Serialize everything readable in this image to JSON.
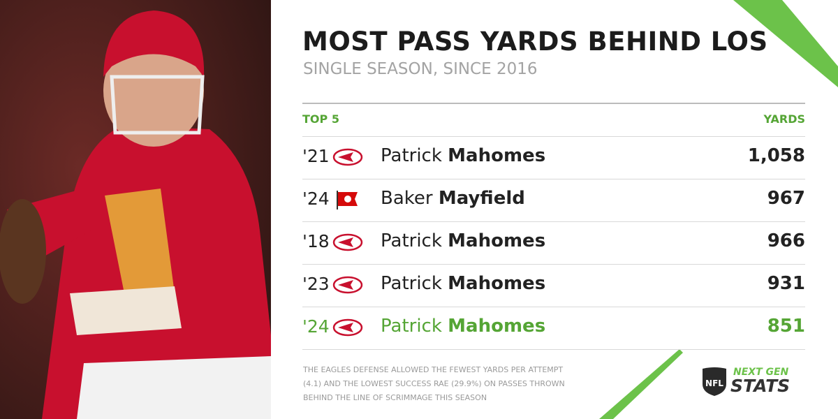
{
  "header": {
    "title": "MOST PASS YARDS BEHIND LOS",
    "subtitle": "SINGLE SEASON, SINCE 2016"
  },
  "table": {
    "columns": [
      "TOP 5",
      "YARDS"
    ],
    "rows": [
      {
        "year": "'21",
        "team": "KC",
        "first": "Patrick",
        "last": "Mahomes",
        "yards": "1,058"
      },
      {
        "year": "'24",
        "team": "TB",
        "first": "Baker",
        "last": "Mayfield",
        "yards": "967"
      },
      {
        "year": "'18",
        "team": "KC",
        "first": "Patrick",
        "last": "Mahomes",
        "yards": "966"
      },
      {
        "year": "'23",
        "team": "KC",
        "first": "Patrick",
        "last": "Mahomes",
        "yards": "931"
      },
      {
        "year": "'24",
        "team": "KC",
        "first": "Patrick",
        "last": "Mahomes",
        "yards": "851",
        "highlight": true
      }
    ]
  },
  "footnote": [
    "THE EAGLES DEFENSE ALLOWED THE FEWEST YARDS PER ATTEMPT",
    "(4.1) AND THE LOWEST SUCCESS RAE (29.9%) ON PASSES THROWN",
    "BEHIND THE LINE OF SCRIMMAGE THIS SEASON"
  ],
  "logo": {
    "shield": "NFL",
    "line1": "NEXT GEN",
    "line2": "STATS"
  }
}
